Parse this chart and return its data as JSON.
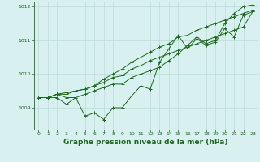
{
  "x": [
    0,
    1,
    2,
    3,
    4,
    5,
    6,
    7,
    8,
    9,
    10,
    11,
    12,
    13,
    14,
    15,
    16,
    17,
    18,
    19,
    20,
    21,
    22,
    23
  ],
  "series": [
    [
      1009.3,
      1009.3,
      1009.3,
      1009.1,
      1009.3,
      1008.75,
      1008.85,
      1008.65,
      1009.0,
      1009.0,
      1009.35,
      1009.65,
      1009.55,
      1010.35,
      1010.75,
      1011.15,
      1010.75,
      1011.05,
      1010.85,
      1010.95,
      1011.35,
      1011.1,
      1011.75,
      1011.85
    ],
    [
      1009.3,
      1009.3,
      1009.4,
      1009.4,
      1009.5,
      1009.55,
      1009.65,
      1009.85,
      1010.0,
      1010.15,
      1010.35,
      1010.5,
      1010.65,
      1010.8,
      1010.9,
      1011.1,
      1011.15,
      1011.3,
      1011.4,
      1011.5,
      1011.6,
      1011.7,
      1011.8,
      1011.9
    ],
    [
      1009.3,
      1009.3,
      1009.4,
      1009.45,
      1009.5,
      1009.55,
      1009.65,
      1009.75,
      1009.9,
      1009.95,
      1010.15,
      1010.25,
      1010.4,
      1010.5,
      1010.6,
      1010.7,
      1010.8,
      1010.9,
      1011.0,
      1011.1,
      1011.2,
      1011.3,
      1011.4,
      1011.85
    ],
    [
      1009.3,
      1009.3,
      1009.4,
      1009.3,
      1009.3,
      1009.4,
      1009.5,
      1009.6,
      1009.7,
      1009.7,
      1009.9,
      1010.0,
      1010.1,
      1010.2,
      1010.4,
      1010.6,
      1010.85,
      1011.1,
      1010.9,
      1011.0,
      1011.5,
      1011.8,
      1012.0,
      1012.05
    ]
  ],
  "ylim": [
    1008.35,
    1012.15
  ],
  "yticks": [
    1009,
    1010,
    1011,
    1012
  ],
  "xlim": [
    -0.5,
    23.5
  ],
  "xticks": [
    0,
    1,
    2,
    3,
    4,
    5,
    6,
    7,
    8,
    9,
    10,
    11,
    12,
    13,
    14,
    15,
    16,
    17,
    18,
    19,
    20,
    21,
    22,
    23
  ],
  "line_color": "#1a6b1a",
  "bg_color": "#d8f0f0",
  "grid_color": "#b8dcd8",
  "xlabel": "Graphe pression niveau de la mer (hPa)",
  "figsize": [
    3.2,
    2.0
  ],
  "dpi": 100
}
